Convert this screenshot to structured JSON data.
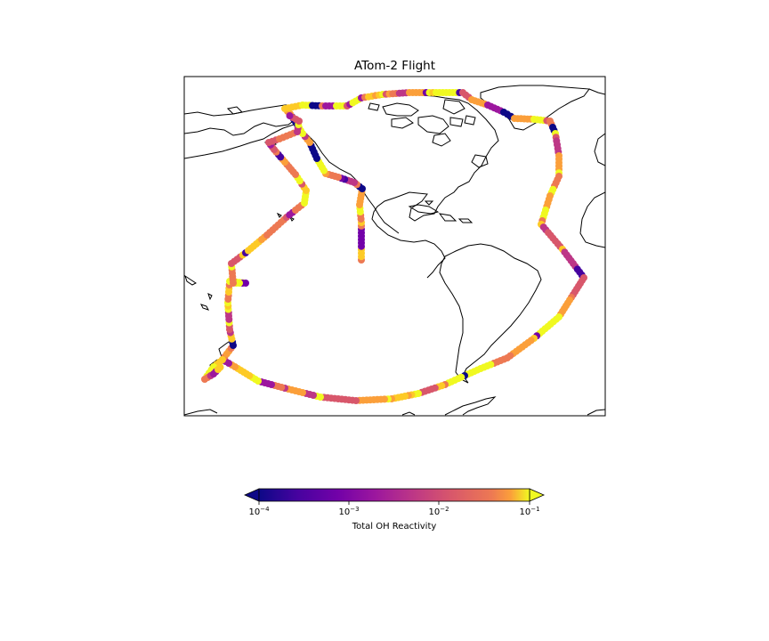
{
  "title": "ATom-2 Flight",
  "colorbar": {
    "label": "Total OH Reactivity",
    "scale": "log",
    "range": [
      0.0001,
      0.1
    ],
    "extend": "both",
    "colormap": "plasma",
    "tick_base": "10",
    "ticks": [
      {
        "value": 0.0001,
        "exponent": "−4"
      },
      {
        "value": 0.001,
        "exponent": "−3"
      },
      {
        "value": 0.01,
        "exponent": "−2"
      },
      {
        "value": 0.1,
        "exponent": "−1"
      }
    ]
  },
  "map": {
    "region": "Americas, Pacific and Atlantic oceans",
    "coastline_color": "#000000",
    "track_marker": "filled circles colored by value"
  }
}
